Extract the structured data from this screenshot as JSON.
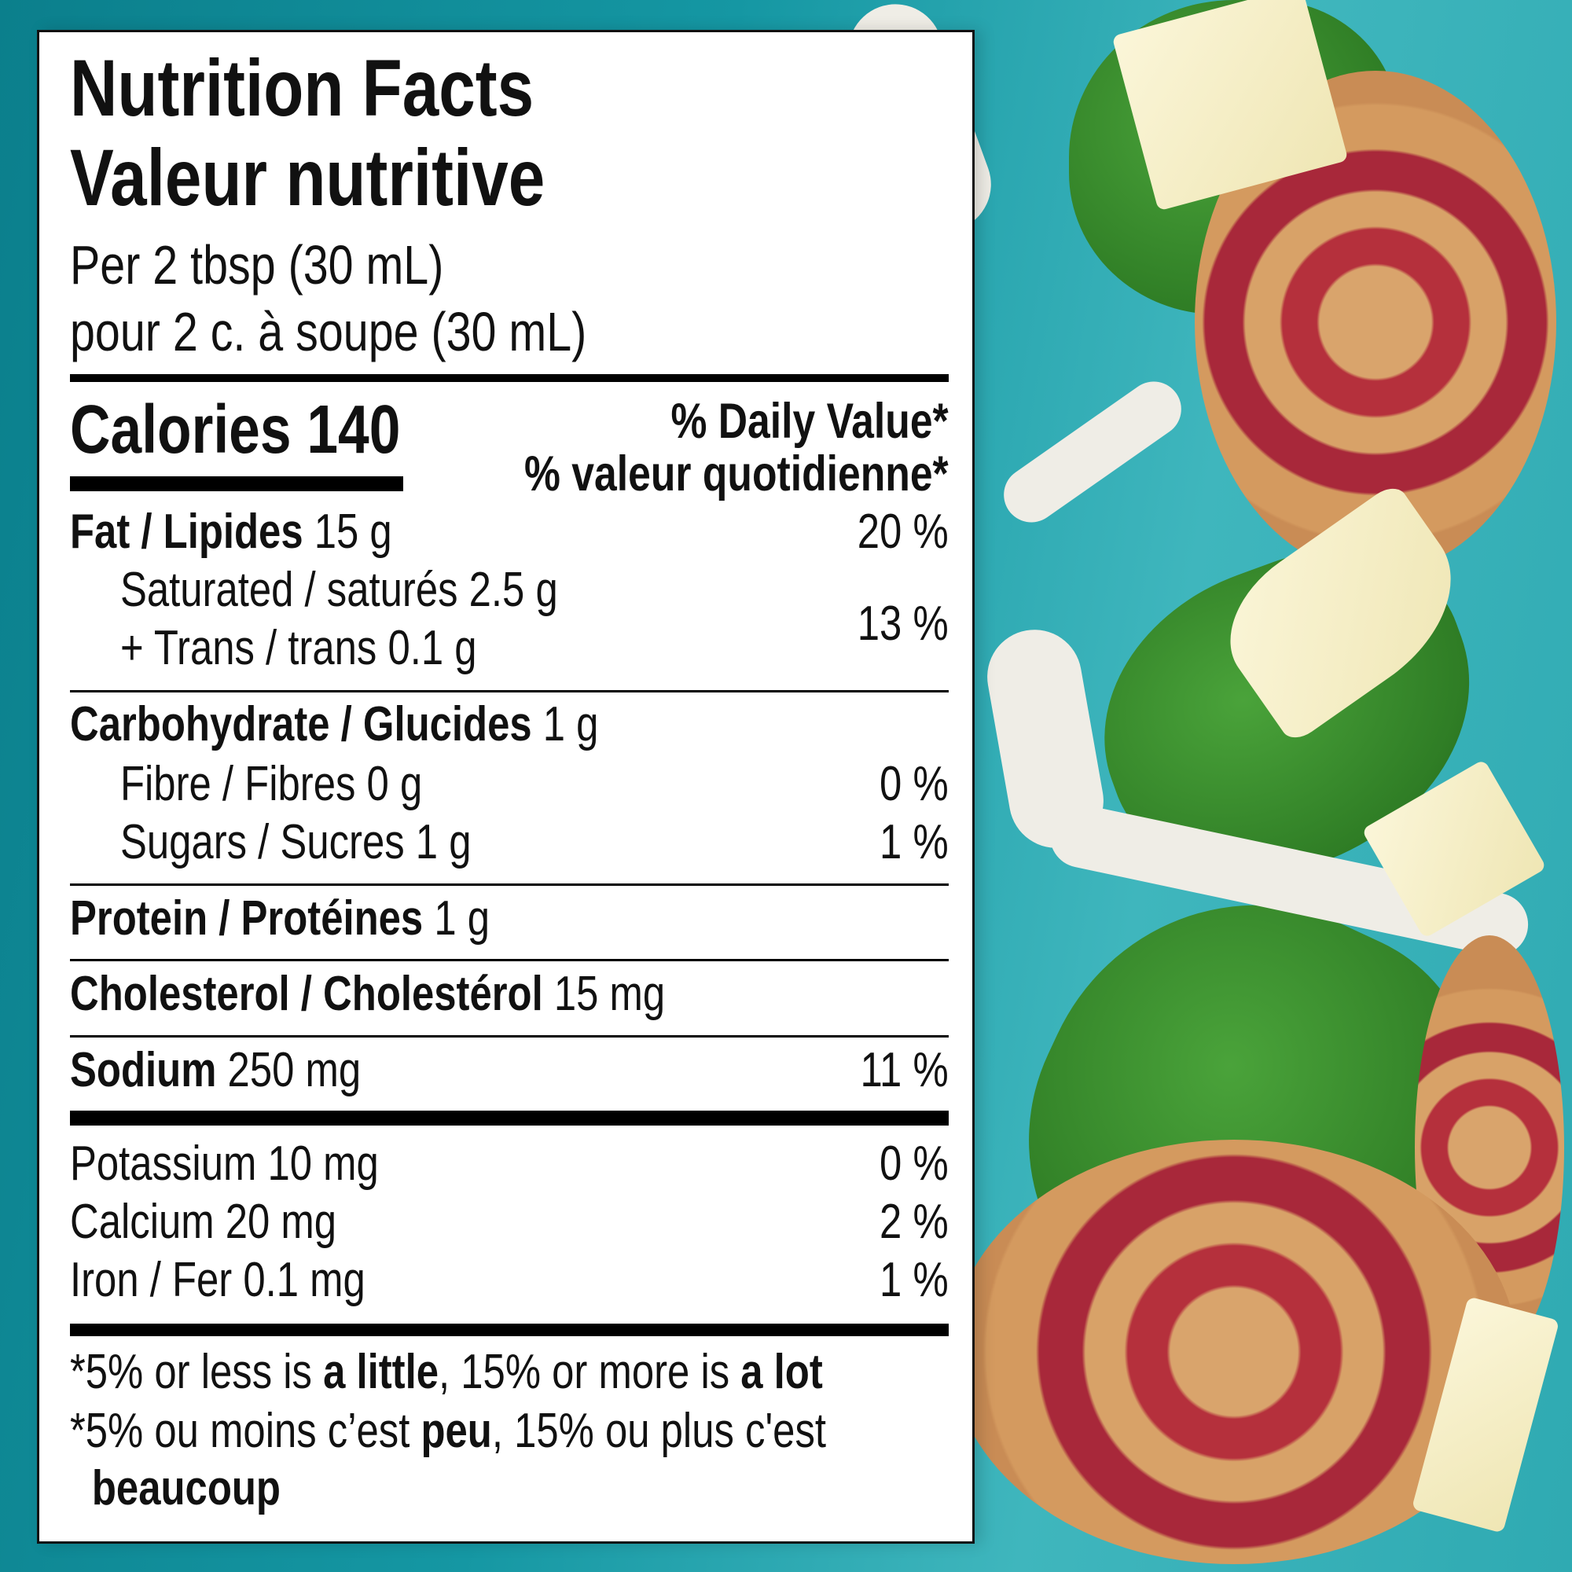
{
  "label": {
    "title_en": "Nutrition Facts",
    "title_fr": "Valeur nutritive",
    "serving_en": "Per 2 tbsp (30 mL)",
    "serving_fr": "pour 2 c. à soupe (30 mL)",
    "calories_label": "Calories",
    "calories_value": "140",
    "dv_en": "% Daily Value*",
    "dv_fr": "% valeur quotidienne*",
    "rows": [
      {
        "name": "Fat / Lipides",
        "amount": "15 g",
        "dv": "20 %"
      },
      {
        "name": "Saturated / saturés",
        "amount": "2.5 g"
      },
      {
        "name": "+ Trans / trans",
        "amount": "0.1 g",
        "dv": "13 %"
      },
      {
        "name": "Carbohydrate / Glucides",
        "amount": "1 g"
      },
      {
        "name": "Fibre / Fibres",
        "amount": "0 g",
        "dv": "0 %"
      },
      {
        "name": "Sugars / Sucres",
        "amount": "1 g",
        "dv": "1 %"
      },
      {
        "name": "Protein / Protéines",
        "amount": "1 g"
      },
      {
        "name": "Cholesterol / Cholestérol",
        "amount": "15 mg"
      },
      {
        "name": "Sodium",
        "amount": "250 mg",
        "dv": "11 %"
      },
      {
        "name": "Potassium",
        "amount": "10 mg",
        "dv": "0 %"
      },
      {
        "name": "Calcium",
        "amount": "20 mg",
        "dv": "2 %"
      },
      {
        "name": "Iron / Fer",
        "amount": "0.1 mg",
        "dv": "1 %"
      }
    ],
    "footnote_en": {
      "a": "*5% or less is ",
      "b": "a little",
      "c": ", 15% or more is ",
      "d": "a lot"
    },
    "footnote_fr": {
      "a": "*5% ou moins c’est ",
      "b": "peu",
      "c": ", 15% ou plus c'est",
      "d": "beaucoup"
    }
  },
  "colors": {
    "background": "#1597a3",
    "panel": "#ffffff",
    "ink": "#111111"
  }
}
